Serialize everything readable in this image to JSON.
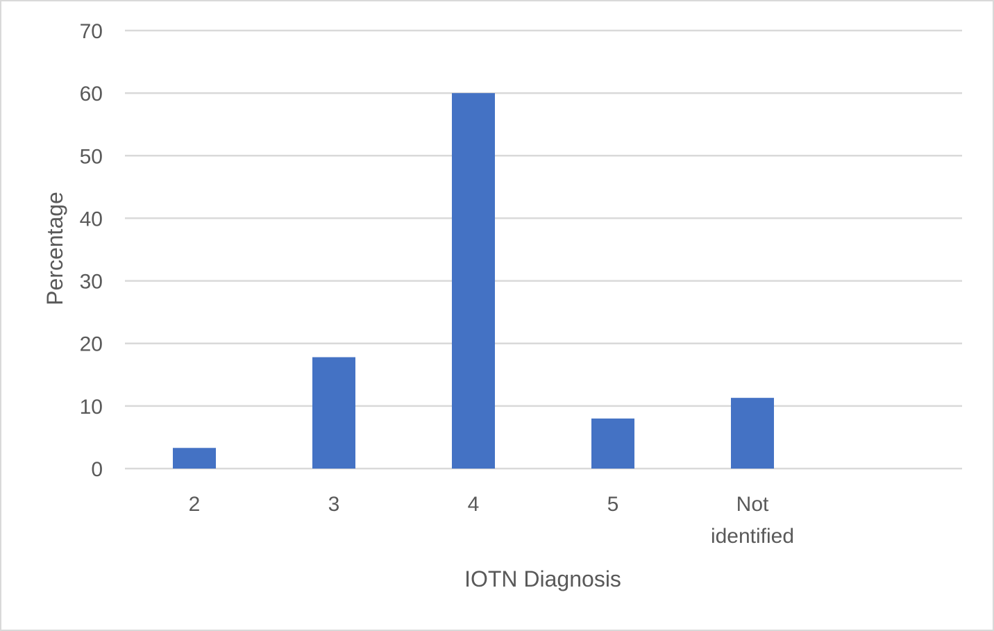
{
  "chart_data": {
    "type": "bar",
    "categories": [
      "2",
      "3",
      "4",
      "5",
      "Not identified"
    ],
    "category_lines": [
      [
        "2"
      ],
      [
        "3"
      ],
      [
        "4"
      ],
      [
        "5"
      ],
      [
        "Not",
        "identified"
      ]
    ],
    "values": [
      3.3,
      17.8,
      60.0,
      8.0,
      11.3
    ],
    "title": "",
    "xlabel": "IOTN Diagnosis",
    "ylabel": "Percentage",
    "ylim": [
      0,
      70
    ],
    "yticks": [
      0,
      10,
      20,
      30,
      40,
      50,
      60,
      70
    ],
    "grid": true,
    "legend": "none",
    "bar_color": "#4472c4"
  }
}
